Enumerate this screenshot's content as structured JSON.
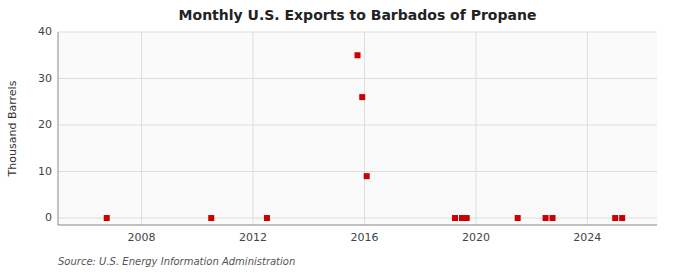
{
  "chart_data": {
    "type": "scatter",
    "title": "Monthly U.S. Exports to Barbados of Propane",
    "ylabel": "Thousand Barrels",
    "source": "Source: U.S. Energy Information Administration",
    "x": [
      2006.75,
      2010.5,
      2012.5,
      2015.75,
      2015.92,
      2016.08,
      2019.25,
      2019.5,
      2019.67,
      2021.5,
      2022.5,
      2022.75,
      2025.0,
      2025.25
    ],
    "values": [
      0,
      0,
      0,
      35,
      26,
      9,
      0,
      0,
      0,
      0,
      0,
      0,
      0,
      0
    ],
    "color": "#cc0000",
    "marker": "square",
    "xlim": [
      2005.0,
      2026.5
    ],
    "xticks": [
      2008,
      2012,
      2016,
      2020,
      2024
    ],
    "ylim": [
      -1.5,
      40
    ],
    "yticks": [
      0,
      10,
      20,
      30,
      40
    ],
    "grid": true
  }
}
